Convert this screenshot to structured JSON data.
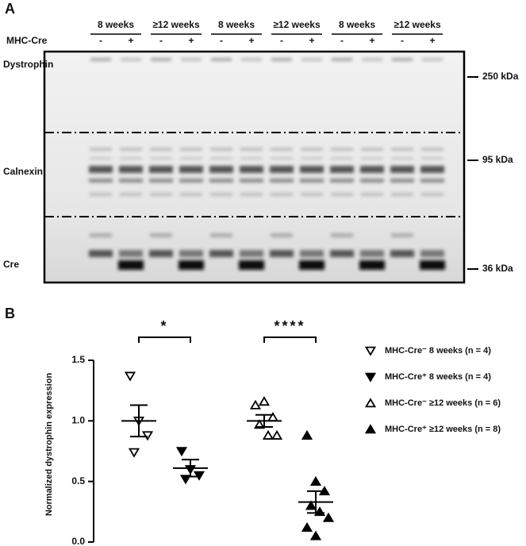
{
  "panel_a": {
    "label": "A",
    "groups": [
      "8 weeks",
      "≥12 weeks",
      "8 weeks",
      "≥12 weeks",
      "8 weeks",
      "≥12 weeks"
    ],
    "row_label": "MHC-Cre",
    "lanes": [
      "-",
      "+",
      "-",
      "+",
      "-",
      "+",
      "-",
      "+",
      "-",
      "+",
      "-",
      "+"
    ],
    "proteins": [
      "Dystrophin",
      "Calnexin",
      "Cre"
    ],
    "markers": [
      "250 kDa",
      "95 kDa",
      "36 kDa"
    ]
  },
  "panel_b": {
    "label": "B"
  },
  "chart_data": {
    "type": "scatter",
    "y_label": "Normalized dystrophin expression",
    "ylim": [
      0,
      1.5
    ],
    "yticks": [
      {
        "value": 0,
        "label": "0.0"
      },
      0.5,
      {
        "value": 1,
        "label": "1.0"
      },
      1.5
    ],
    "annotations": [
      "*",
      "****"
    ],
    "series": [
      {
        "name": "MHC-Cre⁻ 8 weeks (n = 4)",
        "marker": "triangle-down",
        "filled": false,
        "color": "#000000",
        "values": [
          1.37,
          1.0,
          0.88,
          0.74
        ],
        "mean": 1.0,
        "sem": 0.13
      },
      {
        "name": "MHC-Cre⁺ 8 weeks (n = 4)",
        "marker": "triangle-down",
        "filled": true,
        "color": "#000000",
        "values": [
          0.75,
          0.6,
          0.55,
          0.52
        ],
        "mean": 0.61,
        "sem": 0.07
      },
      {
        "name": "MHC-Cre⁻ ≥12 weeks (n = 6)",
        "marker": "triangle-up",
        "filled": false,
        "color": "#000000",
        "values": [
          1.13,
          1.16,
          1.03,
          0.97,
          0.88,
          0.88
        ],
        "mean": 1.0,
        "sem": 0.05
      },
      {
        "name": "MHC-Cre⁺ ≥12 weeks (n = 8)",
        "marker": "triangle-up",
        "filled": true,
        "color": "#000000",
        "values": [
          0.88,
          0.5,
          0.42,
          0.3,
          0.25,
          0.2,
          0.12,
          0.05
        ],
        "mean": 0.33,
        "sem": 0.09
      }
    ]
  }
}
